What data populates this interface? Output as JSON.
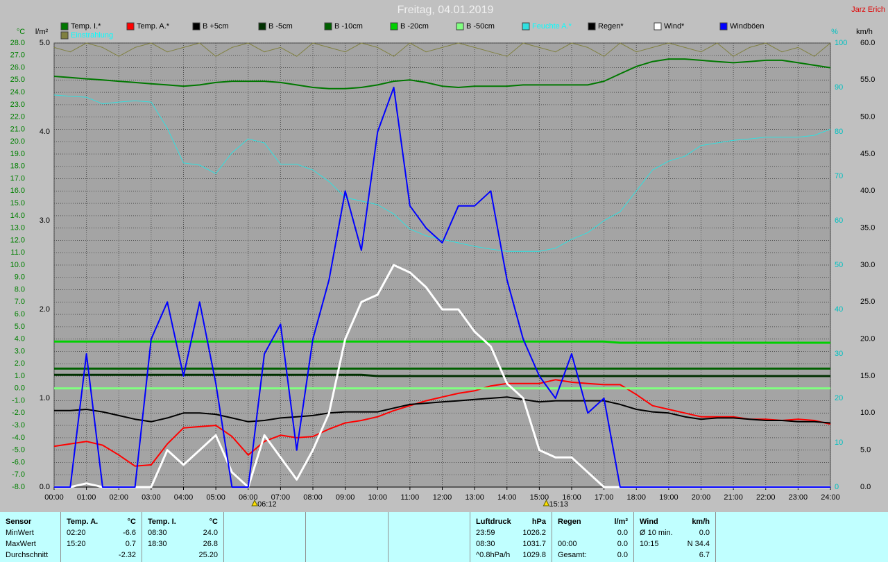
{
  "chart_data": {
    "type": "line",
    "title": "Freitag, 04.01.2019",
    "author": "Jarz Erich",
    "y_label": "°C",
    "y2_label": "l/m²",
    "y3_label": "%",
    "y4_label": "km/h",
    "grid": true,
    "xlim": [
      0,
      24
    ],
    "xticks": [
      {
        "value": 0,
        "label": "00:00"
      },
      {
        "value": 1,
        "label": "01:00"
      },
      {
        "value": 2,
        "label": "02:00"
      },
      {
        "value": 3,
        "label": "03:00"
      },
      {
        "value": 4,
        "label": "04:00"
      },
      {
        "value": 5,
        "label": "05:00"
      },
      {
        "value": 6,
        "label": "06:00"
      },
      {
        "value": 7,
        "label": "07:00"
      },
      {
        "value": 8,
        "label": "08:00"
      },
      {
        "value": 9,
        "label": "09:00"
      },
      {
        "value": 10,
        "label": "10:00"
      },
      {
        "value": 11,
        "label": "11:00"
      },
      {
        "value": 12,
        "label": "12:00"
      },
      {
        "value": 13,
        "label": "13:00"
      },
      {
        "value": 14,
        "label": "14:00"
      },
      {
        "value": 15,
        "label": "15:00"
      },
      {
        "value": 16,
        "label": "16:00"
      },
      {
        "value": 17,
        "label": "17:00"
      },
      {
        "value": 18,
        "label": "18:00"
      },
      {
        "value": 19,
        "label": "19:00"
      },
      {
        "value": 20,
        "label": "20:00"
      },
      {
        "value": 21,
        "label": "21:00"
      },
      {
        "value": 22,
        "label": "22:00"
      },
      {
        "value": 23,
        "label": "23:00"
      },
      {
        "value": 24,
        "label": "24:00"
      }
    ],
    "ylim": [
      -8,
      28
    ],
    "yticks": [
      {
        "value": -8,
        "label": "-8.0"
      },
      {
        "value": -7,
        "label": "-7.0"
      },
      {
        "value": -6,
        "label": "-6.0"
      },
      {
        "value": -5,
        "label": "-5.0"
      },
      {
        "value": -4,
        "label": "-4.0"
      },
      {
        "value": -3,
        "label": "-3.0"
      },
      {
        "value": -2,
        "label": "-2.0"
      },
      {
        "value": -1,
        "label": "-1.0"
      },
      {
        "value": 0,
        "label": "0.0"
      },
      {
        "value": 1,
        "label": "1.0"
      },
      {
        "value": 2,
        "label": "2.0"
      },
      {
        "value": 3,
        "label": "3.0"
      },
      {
        "value": 4,
        "label": "4.0"
      },
      {
        "value": 5,
        "label": "5.0"
      },
      {
        "value": 6,
        "label": "6.0"
      },
      {
        "value": 7,
        "label": "7.0"
      },
      {
        "value": 8,
        "label": "8.0"
      },
      {
        "value": 9,
        "label": "9.0"
      },
      {
        "value": 10,
        "label": "10.0"
      },
      {
        "value": 11,
        "label": "11.0"
      },
      {
        "value": 12,
        "label": "12.0"
      },
      {
        "value": 13,
        "label": "13.0"
      },
      {
        "value": 14,
        "label": "14.0"
      },
      {
        "value": 15,
        "label": "15.0"
      },
      {
        "value": 16,
        "label": "16.0"
      },
      {
        "value": 17,
        "label": "17.0"
      },
      {
        "value": 18,
        "label": "18.0"
      },
      {
        "value": 19,
        "label": "19.0"
      },
      {
        "value": 20,
        "label": "20.0"
      },
      {
        "value": 21,
        "label": "21.0"
      },
      {
        "value": 22,
        "label": "22.0"
      },
      {
        "value": 23,
        "label": "23.0"
      },
      {
        "value": 24,
        "label": "24.0"
      },
      {
        "value": 25,
        "label": "25.0"
      },
      {
        "value": 26,
        "label": "26.0"
      },
      {
        "value": 27,
        "label": "27.0"
      },
      {
        "value": 28,
        "label": "28.0"
      }
    ],
    "y2lim": [
      0,
      5
    ],
    "y2ticks": [
      {
        "value": 0,
        "label": "0.0"
      },
      {
        "value": 1,
        "label": "1.0"
      },
      {
        "value": 2,
        "label": "2.0"
      },
      {
        "value": 3,
        "label": "3.0"
      },
      {
        "value": 4,
        "label": "4.0"
      },
      {
        "value": 5,
        "label": "5.0"
      }
    ],
    "y3lim": [
      0,
      100
    ],
    "y3ticks": [
      0,
      10,
      20,
      30,
      40,
      50,
      60,
      70,
      80,
      90,
      100
    ],
    "y4lim": [
      0,
      60
    ],
    "y4ticks": [
      {
        "value": 0,
        "label": "0.0"
      },
      {
        "value": 5,
        "label": "5.0"
      },
      {
        "value": 10,
        "label": "10.0"
      },
      {
        "value": 15,
        "label": "15.0"
      },
      {
        "value": 20,
        "label": "20.0"
      },
      {
        "value": 25,
        "label": "25.0"
      },
      {
        "value": 30,
        "label": "30.0"
      },
      {
        "value": 35,
        "label": "35.0"
      },
      {
        "value": 40,
        "label": "40.0"
      },
      {
        "value": 45,
        "label": "45.0"
      },
      {
        "value": 50,
        "label": "50.0"
      },
      {
        "value": 55,
        "label": "55.0"
      },
      {
        "value": 60,
        "label": "60.0"
      }
    ],
    "annotations": [
      {
        "x": 6.2,
        "label": "06:12"
      },
      {
        "x": 15.2167,
        "label": "15:13"
      }
    ],
    "x": [
      0,
      0.5,
      1,
      1.5,
      2,
      2.5,
      3,
      3.5,
      4,
      4.5,
      5,
      5.5,
      6,
      6.5,
      7,
      7.5,
      8,
      8.5,
      9,
      9.5,
      10,
      10.5,
      11,
      11.5,
      12,
      12.5,
      13,
      13.5,
      14,
      14.5,
      15,
      15.5,
      16,
      16.5,
      17,
      17.5,
      18,
      18.5,
      19,
      19.5,
      20,
      20.5,
      21,
      21.5,
      22,
      22.5,
      23,
      23.5,
      24
    ],
    "series": [
      {
        "name": "Temp. I.*",
        "color": "#007800",
        "axis": "y",
        "width": 2,
        "values": [
          25.3,
          25.2,
          25.1,
          25.0,
          24.9,
          24.8,
          24.7,
          24.6,
          24.5,
          24.6,
          24.8,
          24.9,
          24.9,
          24.9,
          24.8,
          24.6,
          24.4,
          24.3,
          24.3,
          24.4,
          24.6,
          24.9,
          25.0,
          24.8,
          24.5,
          24.4,
          24.5,
          24.5,
          24.5,
          24.6,
          24.6,
          24.6,
          24.6,
          24.6,
          24.9,
          25.5,
          26.1,
          26.5,
          26.7,
          26.7,
          26.6,
          26.5,
          26.4,
          26.5,
          26.6,
          26.6,
          26.4,
          26.2,
          26.0
        ]
      },
      {
        "name": "Temp. A.*",
        "color": "#ff0000",
        "axis": "y",
        "width": 2,
        "values": [
          -4.7,
          -4.5,
          -4.3,
          -4.6,
          -5.4,
          -6.3,
          -6.2,
          -4.5,
          -3.2,
          -3.1,
          -3.0,
          -3.9,
          -5.4,
          -4.3,
          -3.8,
          -4.0,
          -3.9,
          -3.3,
          -2.8,
          -2.6,
          -2.3,
          -1.8,
          -1.4,
          -1.0,
          -0.7,
          -0.4,
          -0.2,
          0.2,
          0.4,
          0.4,
          0.4,
          0.7,
          0.5,
          0.4,
          0.3,
          0.3,
          -0.5,
          -1.4,
          -1.7,
          -2.0,
          -2.3,
          -2.3,
          -2.3,
          -2.5,
          -2.5,
          -2.6,
          -2.5,
          -2.6,
          -2.9
        ]
      },
      {
        "name": "B +5cm",
        "color": "#000000",
        "axis": "y",
        "width": 2,
        "values": [
          -1.8,
          -1.8,
          -1.7,
          -1.9,
          -2.2,
          -2.5,
          -2.7,
          -2.4,
          -2.0,
          -2.0,
          -2.1,
          -2.4,
          -2.7,
          -2.6,
          -2.4,
          -2.3,
          -2.2,
          -2.0,
          -1.9,
          -1.9,
          -1.9,
          -1.6,
          -1.3,
          -1.2,
          -1.1,
          -1.0,
          -0.9,
          -0.8,
          -0.7,
          -0.9,
          -1.1,
          -1.0,
          -1.0,
          -1.0,
          -1.0,
          -1.3,
          -1.7,
          -1.9,
          -2.0,
          -2.3,
          -2.5,
          -2.4,
          -2.4,
          -2.5,
          -2.6,
          -2.6,
          -2.7,
          -2.7,
          -2.8
        ]
      },
      {
        "name": "B -5cm",
        "color": "#003000",
        "axis": "y",
        "width": 3,
        "values": [
          1.1,
          1.1,
          1.1,
          1.1,
          1.1,
          1.1,
          1.1,
          1.1,
          1.1,
          1.1,
          1.1,
          1.1,
          1.1,
          1.1,
          1.1,
          1.1,
          1.1,
          1.1,
          1.1,
          1.1,
          1.0,
          1.0,
          1.0,
          1.0,
          1.0,
          1.0,
          1.0,
          1.0,
          1.0,
          1.0,
          1.0,
          1.0,
          1.0,
          1.0,
          1.0,
          1.0,
          1.0,
          1.0,
          1.0,
          1.0,
          1.0,
          1.0,
          1.0,
          1.0,
          1.0,
          1.0,
          1.0,
          1.0,
          1.0
        ]
      },
      {
        "name": "B -10cm",
        "color": "#006000",
        "axis": "y",
        "width": 3,
        "values": [
          1.6,
          1.6,
          1.6,
          1.6,
          1.6,
          1.6,
          1.6,
          1.6,
          1.6,
          1.6,
          1.6,
          1.6,
          1.6,
          1.6,
          1.6,
          1.6,
          1.6,
          1.6,
          1.6,
          1.6,
          1.6,
          1.6,
          1.6,
          1.6,
          1.6,
          1.6,
          1.6,
          1.6,
          1.6,
          1.6,
          1.6,
          1.6,
          1.6,
          1.6,
          1.6,
          1.6,
          1.6,
          1.6,
          1.6,
          1.6,
          1.6,
          1.6,
          1.6,
          1.6,
          1.6,
          1.6,
          1.6,
          1.6,
          1.6
        ]
      },
      {
        "name": "B -20cm",
        "color": "#00d000",
        "axis": "y",
        "width": 3,
        "values": [
          3.8,
          3.8,
          3.8,
          3.8,
          3.8,
          3.8,
          3.8,
          3.8,
          3.8,
          3.8,
          3.8,
          3.8,
          3.8,
          3.8,
          3.8,
          3.8,
          3.8,
          3.8,
          3.8,
          3.8,
          3.8,
          3.8,
          3.8,
          3.8,
          3.8,
          3.8,
          3.8,
          3.8,
          3.8,
          3.8,
          3.8,
          3.8,
          3.8,
          3.8,
          3.8,
          3.7,
          3.7,
          3.7,
          3.7,
          3.7,
          3.7,
          3.7,
          3.7,
          3.7,
          3.7,
          3.7,
          3.7,
          3.7,
          3.7
        ]
      },
      {
        "name": "B -50cm",
        "color": "#80ff80",
        "axis": "y",
        "width": 3,
        "values": [
          0,
          0,
          0,
          0,
          0,
          0,
          0,
          0,
          0,
          0,
          0,
          0,
          0,
          0,
          0,
          0,
          0,
          0,
          0,
          0,
          0,
          0,
          0,
          0,
          0,
          0,
          0,
          0,
          0,
          0,
          0,
          0,
          0,
          0,
          0,
          0,
          0,
          0,
          0,
          0,
          0,
          0,
          0,
          0,
          0,
          0,
          0,
          0,
          0
        ]
      },
      {
        "name": "Feuchte A.*",
        "color": "#30e0e0",
        "legend_text_color": "#00ffff",
        "axis": "y3",
        "width": 1,
        "values": [
          88.3,
          88.0,
          87.8,
          86.3,
          86.7,
          87.0,
          86.7,
          80.8,
          73.0,
          72.5,
          70.6,
          75.3,
          78.4,
          77.5,
          72.7,
          72.7,
          71.4,
          68.8,
          65.2,
          64.4,
          63.6,
          61.5,
          58.1,
          56.6,
          55.8,
          55.0,
          54.2,
          53.6,
          53.1,
          53.1,
          53.1,
          53.8,
          55.8,
          57.3,
          60.0,
          62.0,
          66.7,
          71.4,
          73.4,
          74.5,
          76.9,
          77.5,
          78.1,
          78.4,
          78.8,
          78.8,
          78.8,
          79.2,
          80.6
        ]
      },
      {
        "name": "Regen*",
        "color": "#000000",
        "axis": "y2",
        "width": 1,
        "values": [
          0,
          0,
          0,
          0,
          0,
          0,
          0,
          0,
          0,
          0,
          0,
          0,
          0,
          0,
          0,
          0,
          0,
          0,
          0,
          0,
          0,
          0,
          0,
          0,
          0,
          0,
          0,
          0,
          0,
          0,
          0,
          0,
          0,
          0,
          0,
          0,
          0,
          0,
          0,
          0,
          0,
          0,
          0,
          0,
          0,
          0,
          0,
          0,
          0
        ]
      },
      {
        "name": "Wind*",
        "color": "#ffffff",
        "axis": "y4",
        "width": 3,
        "values": [
          0,
          0,
          0.5,
          0,
          0,
          0,
          0,
          5,
          3,
          5,
          7,
          2,
          0,
          7,
          4,
          1,
          5,
          10,
          20,
          25,
          26,
          30,
          29,
          27,
          24,
          24,
          21,
          19,
          14,
          12,
          5,
          4,
          4,
          2,
          0,
          0,
          0,
          0,
          0,
          0,
          0,
          0,
          0,
          0,
          0,
          0,
          0,
          0,
          0
        ]
      },
      {
        "name": "Windböen",
        "color": "#0000ff",
        "axis": "y4",
        "width": 2,
        "values": [
          0,
          0,
          18,
          0,
          0,
          0,
          20,
          25,
          15,
          25,
          14,
          0,
          0,
          18,
          22,
          5,
          20,
          28,
          40,
          32,
          48,
          54,
          38,
          35,
          33,
          38,
          38,
          40,
          28,
          20,
          15,
          12,
          18,
          10,
          12,
          0,
          0,
          0,
          0,
          0,
          0,
          0,
          0,
          0,
          0,
          0,
          0,
          0,
          0
        ]
      },
      {
        "name": "Einstrahlung",
        "color": "#808040",
        "legend_text_color": "#00ffff",
        "axis": "y3",
        "width": 1,
        "values": [
          99,
          98,
          100,
          99,
          97,
          99,
          100,
          98,
          99,
          100,
          97,
          99,
          100,
          98,
          99,
          97,
          100,
          99,
          98,
          100,
          99,
          97,
          100,
          98,
          99,
          100,
          99,
          98,
          97,
          100,
          99,
          98,
          100,
          99,
          97,
          100,
          98,
          99,
          100,
          99,
          98,
          100,
          97,
          99,
          100,
          98,
          99,
          97,
          100
        ]
      }
    ]
  },
  "table": {
    "blocks": [
      {
        "head": [
          "Sensor"
        ],
        "rows": [
          [
            "MinWert"
          ],
          [
            "MaxWert"
          ],
          [
            "Durchschnitt"
          ]
        ]
      },
      {
        "head": [
          "Temp. A.",
          "°C"
        ],
        "rows": [
          [
            "02:20",
            "-6.6"
          ],
          [
            "15:20",
            "0.7"
          ],
          [
            null,
            "-2.32"
          ]
        ]
      },
      {
        "head": [
          "Temp. I.",
          "°C"
        ],
        "rows": [
          [
            "08:30",
            "24.0"
          ],
          [
            "18:30",
            "26.8"
          ],
          [
            null,
            "25.20"
          ]
        ]
      },
      {
        "head": [
          "Luftdruck",
          "hPa"
        ],
        "rows": [
          [
            "23:59",
            "1026.2"
          ],
          [
            "08:30",
            "1031.7"
          ],
          [
            "^0.8hPa/h",
            "1029.8"
          ]
        ]
      },
      {
        "head": [
          "Regen",
          "l/m²"
        ],
        "rows": [
          [
            null,
            "0.0"
          ],
          [
            "00:00",
            "0.0"
          ],
          [
            "Gesamt:",
            "0.0"
          ]
        ]
      },
      {
        "head": [
          "Wind",
          "km/h"
        ],
        "rows": [
          [
            "Ø 10 min.",
            "0.0"
          ],
          [
            "10:15",
            "N 34.4"
          ],
          [
            null,
            "6.7"
          ]
        ]
      }
    ]
  }
}
